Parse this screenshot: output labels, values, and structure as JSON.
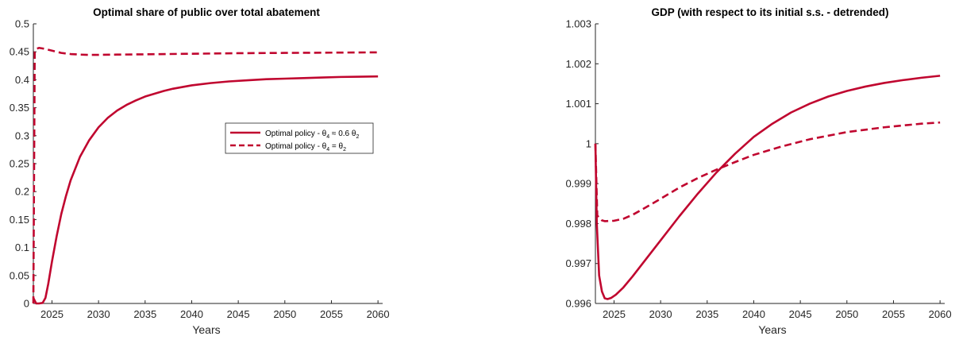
{
  "colors": {
    "series": "#c0062f",
    "axis": "#262626"
  },
  "chart_data": [
    {
      "type": "line",
      "title": "Optimal share of public over total abatement",
      "xlabel": "Years",
      "ylabel": "",
      "xlim": [
        2023,
        2060.5
      ],
      "ylim": [
        0,
        0.5
      ],
      "xticks": [
        2025,
        2030,
        2035,
        2040,
        2045,
        2050,
        2055,
        2060
      ],
      "yticks": [
        0,
        0.05,
        0.1,
        0.15,
        0.2,
        0.25,
        0.3,
        0.35,
        0.4,
        0.45,
        0.5
      ],
      "ytick_labels": [
        "0",
        "0.05",
        "0.1",
        "0.15",
        "0.2",
        "0.25",
        "0.3",
        "0.35",
        "0.4",
        "0.45",
        "0.5"
      ],
      "grid": false,
      "legend_placement": "center-right",
      "series": [
        {
          "name": "Optimal policy - θ4 ≈ 0.6 θ2",
          "legend": {
            "prefix": "Optimal policy - θ",
            "sub1": "4",
            "mid": " ≈ 0.6 θ",
            "sub2": "2"
          },
          "style": "solid",
          "x": [
            2023,
            2023.3,
            2023.6,
            2024,
            2024.3,
            2024.6,
            2025,
            2025.5,
            2026,
            2026.5,
            2027,
            2028,
            2029,
            2030,
            2031,
            2032,
            2033,
            2034,
            2035,
            2036,
            2037,
            2038,
            2040,
            2042,
            2044,
            2046,
            2048,
            2050,
            2052,
            2054,
            2056,
            2058,
            2060
          ],
          "y": [
            0.01,
            0.0,
            0.0,
            0.001,
            0.01,
            0.035,
            0.075,
            0.12,
            0.16,
            0.192,
            0.22,
            0.262,
            0.292,
            0.315,
            0.332,
            0.345,
            0.355,
            0.363,
            0.37,
            0.375,
            0.38,
            0.384,
            0.39,
            0.394,
            0.397,
            0.399,
            0.401,
            0.402,
            0.403,
            0.404,
            0.405,
            0.4055,
            0.406
          ]
        },
        {
          "name": "Optimal policy - θ4 = θ2",
          "legend": {
            "prefix": "Optimal policy - θ",
            "sub1": "4",
            "mid": " = θ",
            "sub2": "2"
          },
          "style": "dashed",
          "x": [
            2023,
            2023.15,
            2023.3,
            2023.6,
            2024,
            2025,
            2026,
            2027,
            2028,
            2029,
            2030,
            2032,
            2035,
            2040,
            2045,
            2050,
            2055,
            2060
          ],
          "y": [
            0.0,
            0.45,
            0.455,
            0.457,
            0.456,
            0.452,
            0.448,
            0.446,
            0.445,
            0.4445,
            0.4445,
            0.445,
            0.4455,
            0.4465,
            0.4475,
            0.448,
            0.4485,
            0.449
          ]
        }
      ]
    },
    {
      "type": "line",
      "title": "GDP (with respect to its initial s.s. - detrended)",
      "xlabel": "Years",
      "ylabel": "",
      "xlim": [
        2023,
        2060.5
      ],
      "ylim": [
        0.996,
        1.003
      ],
      "xticks": [
        2025,
        2030,
        2035,
        2040,
        2045,
        2050,
        2055,
        2060
      ],
      "yticks": [
        0.996,
        0.997,
        0.998,
        0.999,
        1.0,
        1.001,
        1.002,
        1.003
      ],
      "ytick_labels": [
        "0.996",
        "0.997",
        "0.998",
        "0.999",
        "1",
        "1.001",
        "1.002",
        "1.003"
      ],
      "grid": false,
      "series": [
        {
          "style": "solid",
          "x": [
            2023,
            2023.15,
            2023.4,
            2023.7,
            2024,
            2024.3,
            2024.7,
            2025.2,
            2026,
            2027,
            2028,
            2030,
            2032,
            2034,
            2036,
            2038,
            2040,
            2042,
            2044,
            2046,
            2048,
            2050,
            2052,
            2054,
            2056,
            2058,
            2060
          ],
          "y": [
            1.0,
            0.998,
            0.9967,
            0.9963,
            0.99613,
            0.99611,
            0.99614,
            0.99622,
            0.9964,
            0.99668,
            0.99698,
            0.99758,
            0.99818,
            0.99875,
            0.99928,
            0.99975,
            1.00017,
            1.0005,
            1.00078,
            1.001,
            1.00118,
            1.00132,
            1.00143,
            1.00152,
            1.00159,
            1.00165,
            1.0017
          ]
        },
        {
          "style": "dashed",
          "x": [
            2023,
            2023.2,
            2023.4,
            2023.7,
            2024,
            2025,
            2026,
            2027,
            2028,
            2030,
            2032,
            2034,
            2036,
            2038,
            2040,
            2043,
            2046,
            2050,
            2054,
            2058,
            2060
          ],
          "y": [
            1.0,
            0.9982,
            0.99815,
            0.99808,
            0.99806,
            0.99807,
            0.99812,
            0.99822,
            0.99835,
            0.99862,
            0.9989,
            0.99914,
            0.99935,
            0.99954,
            0.99972,
            0.99993,
            1.00011,
            1.00029,
            1.00041,
            1.0005,
            1.00053
          ]
        }
      ]
    }
  ]
}
